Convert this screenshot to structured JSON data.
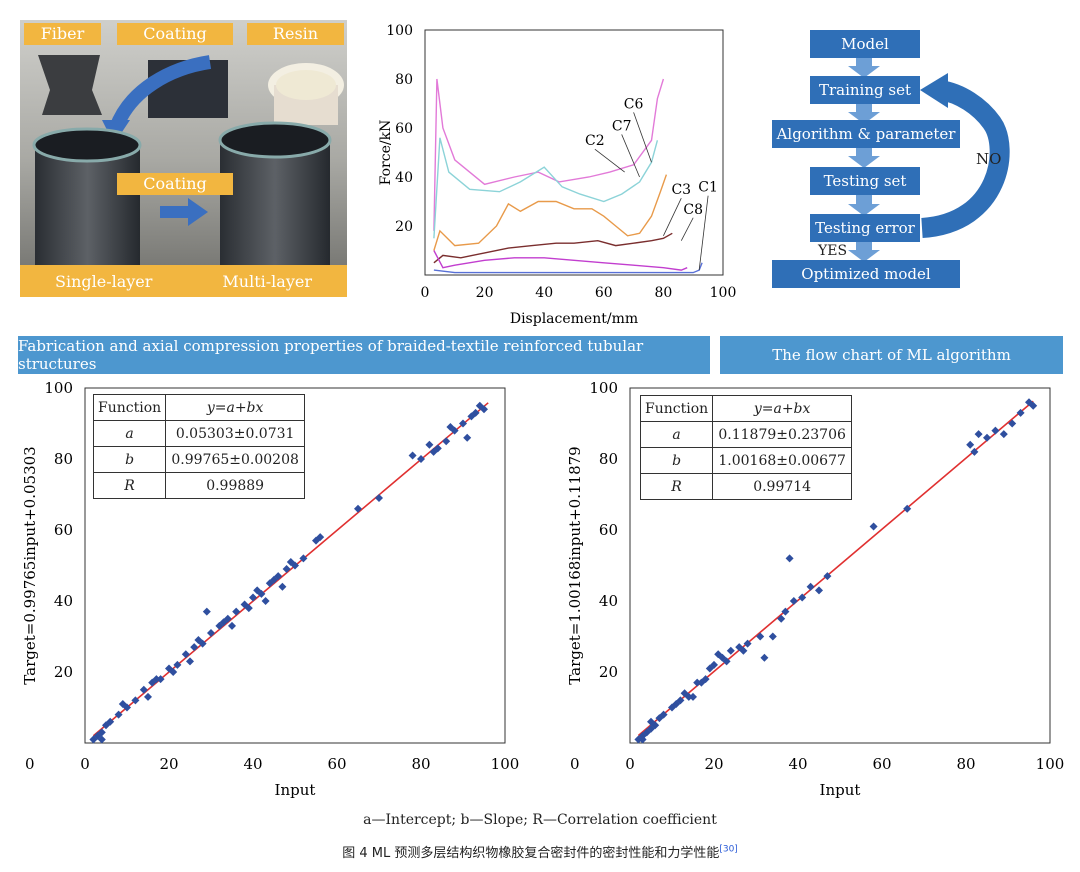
{
  "photo_panel": {
    "tags": {
      "fiber": "Fiber",
      "coating": "Coating",
      "resin": "Resin",
      "coating2": "Coating"
    },
    "bottom": {
      "single": "Single-layer",
      "multi": "Multi-layer"
    }
  },
  "force_chart": {
    "chart_data": {
      "type": "line",
      "xlabel": "Displacement/mm",
      "ylabel": "Force/kN",
      "xlim": [
        0,
        100
      ],
      "ylim": [
        0,
        100
      ],
      "x_ticks": [
        "0",
        "20",
        "40",
        "60",
        "80",
        "100"
      ],
      "y_ticks": [
        "20",
        "40",
        "60",
        "80",
        "100"
      ],
      "series": [
        {
          "name": "C6",
          "color": "#e27ad8",
          "points": [
            [
              3,
              18
            ],
            [
              4,
              80
            ],
            [
              6,
              60
            ],
            [
              10,
              47
            ],
            [
              20,
              37
            ],
            [
              30,
              40
            ],
            [
              38,
              42
            ],
            [
              45,
              38
            ],
            [
              55,
              40
            ],
            [
              62,
              42
            ],
            [
              70,
              45
            ],
            [
              76,
              55
            ],
            [
              78,
              72
            ],
            [
              80,
              80
            ]
          ]
        },
        {
          "name": "C2",
          "color": "#8cd3d8",
          "points": [
            [
              3,
              15
            ],
            [
              5,
              56
            ],
            [
              8,
              42
            ],
            [
              15,
              35
            ],
            [
              25,
              34
            ],
            [
              32,
              38
            ],
            [
              40,
              44
            ],
            [
              46,
              36
            ],
            [
              52,
              33
            ],
            [
              60,
              30
            ],
            [
              66,
              33
            ],
            [
              72,
              38
            ],
            [
              76,
              46
            ],
            [
              78,
              55
            ]
          ]
        },
        {
          "name": "C7",
          "color": "#e89a4a",
          "points": [
            [
              3,
              10
            ],
            [
              5,
              18
            ],
            [
              10,
              12
            ],
            [
              18,
              13
            ],
            [
              24,
              20
            ],
            [
              28,
              29
            ],
            [
              32,
              26
            ],
            [
              38,
              30
            ],
            [
              44,
              30
            ],
            [
              50,
              27
            ],
            [
              56,
              27
            ],
            [
              60,
              24
            ],
            [
              64,
              20
            ],
            [
              68,
              16
            ],
            [
              72,
              17
            ],
            [
              76,
              24
            ],
            [
              79,
              34
            ],
            [
              81,
              41
            ]
          ]
        },
        {
          "name": "C3",
          "color": "#7a2e2e",
          "points": [
            [
              3,
              5
            ],
            [
              6,
              8
            ],
            [
              12,
              7
            ],
            [
              20,
              9
            ],
            [
              28,
              11
            ],
            [
              36,
              12
            ],
            [
              44,
              13
            ],
            [
              50,
              13
            ],
            [
              58,
              14
            ],
            [
              64,
              12
            ],
            [
              70,
              13
            ],
            [
              76,
              14
            ],
            [
              80,
              15
            ],
            [
              83,
              17
            ]
          ]
        },
        {
          "name": "C8",
          "color": "#c23ecf",
          "points": [
            [
              3,
              10
            ],
            [
              6,
              3
            ],
            [
              10,
              4
            ],
            [
              20,
              6
            ],
            [
              30,
              7
            ],
            [
              40,
              7
            ],
            [
              50,
              6
            ],
            [
              60,
              5
            ],
            [
              70,
              4
            ],
            [
              80,
              3
            ],
            [
              86,
              2
            ],
            [
              88,
              3
            ]
          ]
        },
        {
          "name": "C1",
          "color": "#5870d6",
          "points": [
            [
              3,
              2
            ],
            [
              10,
              1
            ],
            [
              20,
              1
            ],
            [
              40,
              1
            ],
            [
              60,
              1
            ],
            [
              80,
              1
            ],
            [
              90,
              1
            ],
            [
              92,
              2
            ],
            [
              93,
              5
            ]
          ]
        }
      ],
      "labels": {
        "C6": "C6",
        "C2": "C2",
        "C7": "C7",
        "C3": "C3",
        "C1": "C1",
        "C8": "C8"
      }
    }
  },
  "flowchart": {
    "model": "Model",
    "training": "Training set",
    "algorithm": "Algorithm & parameter",
    "testing": "Testing set",
    "error": "Testing error",
    "optimized": "Optimized model",
    "yes": "YES",
    "no": "NO"
  },
  "banners": {
    "left": "Fabrication and axial compression properties of braided-textile reinforced tubular structures",
    "right": "The flow chart of ML algorithm"
  },
  "regression_left": {
    "chart_data": {
      "type": "scatter",
      "xlabel": "Input",
      "ylabel": "Target=0.99765input+0.05303",
      "xlim": [
        0,
        100
      ],
      "ylim": [
        0,
        100
      ],
      "x_ticks": [
        "0",
        "20",
        "40",
        "60",
        "80",
        "100"
      ],
      "y_ticks": [
        "20",
        "40",
        "60",
        "80",
        "100"
      ],
      "fit": {
        "a": 0.05303,
        "b": 0.99765
      },
      "points": [
        [
          2,
          1
        ],
        [
          3,
          2
        ],
        [
          4,
          3
        ],
        [
          5,
          5
        ],
        [
          6,
          6
        ],
        [
          8,
          8
        ],
        [
          10,
          10
        ],
        [
          12,
          12
        ],
        [
          14,
          15
        ],
        [
          16,
          17
        ],
        [
          18,
          18
        ],
        [
          20,
          21
        ],
        [
          22,
          22
        ],
        [
          24,
          25
        ],
        [
          26,
          27
        ],
        [
          28,
          28
        ],
        [
          30,
          31
        ],
        [
          32,
          33
        ],
        [
          34,
          35
        ],
        [
          36,
          37
        ],
        [
          38,
          39
        ],
        [
          40,
          41
        ],
        [
          42,
          42
        ],
        [
          44,
          45
        ],
        [
          46,
          47
        ],
        [
          48,
          49
        ],
        [
          50,
          50
        ],
        [
          52,
          52
        ],
        [
          55,
          57
        ],
        [
          65,
          66
        ],
        [
          70,
          69
        ],
        [
          78,
          81
        ],
        [
          80,
          80
        ],
        [
          82,
          84
        ],
        [
          84,
          83
        ],
        [
          86,
          85
        ],
        [
          88,
          88
        ],
        [
          90,
          90
        ],
        [
          92,
          92
        ],
        [
          94,
          95
        ],
        [
          95,
          94
        ],
        [
          4,
          1
        ],
        [
          9,
          11
        ],
        [
          15,
          13
        ],
        [
          17,
          18
        ],
        [
          21,
          20
        ],
        [
          25,
          23
        ],
        [
          27,
          29
        ],
        [
          29,
          37
        ],
        [
          33,
          34
        ],
        [
          35,
          33
        ],
        [
          39,
          38
        ],
        [
          41,
          43
        ],
        [
          43,
          40
        ],
        [
          45,
          46
        ],
        [
          47,
          44
        ],
        [
          49,
          51
        ],
        [
          56,
          58
        ],
        [
          83,
          82
        ],
        [
          87,
          89
        ],
        [
          91,
          86
        ],
        [
          93,
          93
        ]
      ]
    },
    "table": {
      "head": [
        "Function",
        "y=a+bx"
      ],
      "rows": [
        [
          "a",
          "0.05303±0.0731"
        ],
        [
          "b",
          "0.99765±0.00208"
        ],
        [
          "R",
          "0.99889"
        ]
      ]
    }
  },
  "regression_right": {
    "chart_data": {
      "type": "scatter",
      "xlabel": "Input",
      "ylabel": "Target=1.00168input+0.11879",
      "xlim": [
        0,
        100
      ],
      "ylim": [
        0,
        100
      ],
      "x_ticks": [
        "0",
        "20",
        "40",
        "60",
        "80",
        "100"
      ],
      "y_ticks": [
        "20",
        "40",
        "60",
        "80",
        "100"
      ],
      "fit": {
        "a": 0.11879,
        "b": 1.00168
      },
      "points": [
        [
          2,
          1
        ],
        [
          3,
          2
        ],
        [
          4,
          3
        ],
        [
          5,
          4
        ],
        [
          6,
          5
        ],
        [
          8,
          8
        ],
        [
          10,
          10
        ],
        [
          12,
          12
        ],
        [
          14,
          13
        ],
        [
          16,
          17
        ],
        [
          18,
          18
        ],
        [
          19,
          21
        ],
        [
          20,
          22
        ],
        [
          21,
          25
        ],
        [
          22,
          24
        ],
        [
          24,
          26
        ],
        [
          26,
          27
        ],
        [
          28,
          28
        ],
        [
          32,
          24
        ],
        [
          34,
          30
        ],
        [
          36,
          35
        ],
        [
          37,
          37
        ],
        [
          38,
          52
        ],
        [
          39,
          40
        ],
        [
          41,
          41
        ],
        [
          43,
          44
        ],
        [
          45,
          43
        ],
        [
          47,
          47
        ],
        [
          58,
          61
        ],
        [
          66,
          66
        ],
        [
          81,
          84
        ],
        [
          82,
          82
        ],
        [
          83,
          87
        ],
        [
          85,
          86
        ],
        [
          87,
          88
        ],
        [
          89,
          87
        ],
        [
          91,
          90
        ],
        [
          93,
          93
        ],
        [
          95,
          96
        ],
        [
          96,
          95
        ],
        [
          3,
          1
        ],
        [
          5,
          6
        ],
        [
          7,
          7
        ],
        [
          11,
          11
        ],
        [
          13,
          14
        ],
        [
          15,
          13
        ],
        [
          17,
          17
        ],
        [
          23,
          23
        ],
        [
          27,
          26
        ],
        [
          31,
          30
        ]
      ]
    },
    "table": {
      "head": [
        "Function",
        "y=a+bx"
      ],
      "rows": [
        [
          "a",
          "0.11879±0.23706"
        ],
        [
          "b",
          "1.00168±0.00677"
        ],
        [
          "R",
          "0.99714"
        ]
      ]
    }
  },
  "caption": "a—Intercept; b—Slope; R—Correlation coefficient",
  "figure_title": "图 4   ML 预测多层结构织物橡胶复合密封件的密封性能和力学性能",
  "figure_ref": "[30]"
}
